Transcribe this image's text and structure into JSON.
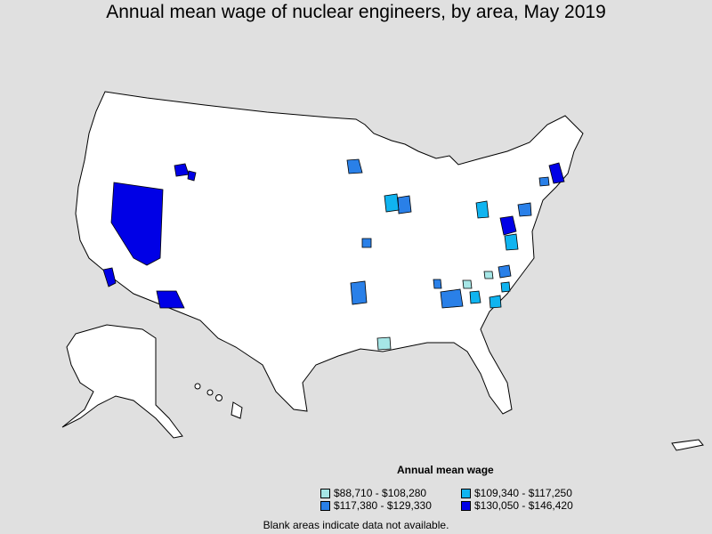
{
  "title": "Annual mean wage of nuclear engineers, by area, May 2019",
  "legend": {
    "title": "Annual mean wage",
    "items": [
      {
        "label": "$88,710 - $108,280",
        "color": "#a6e6e6"
      },
      {
        "label": "$109,340 - $117,250",
        "color": "#10b4f0"
      },
      {
        "label": "$117,380 - $129,330",
        "color": "#2a80e8"
      },
      {
        "label": "$130,050 - $146,420",
        "color": "#0000e6"
      }
    ]
  },
  "footer": "Blank areas indicate data not available.",
  "colors": {
    "background": "#e0e0e0",
    "land": "#ffffff",
    "border": "#000000"
  }
}
